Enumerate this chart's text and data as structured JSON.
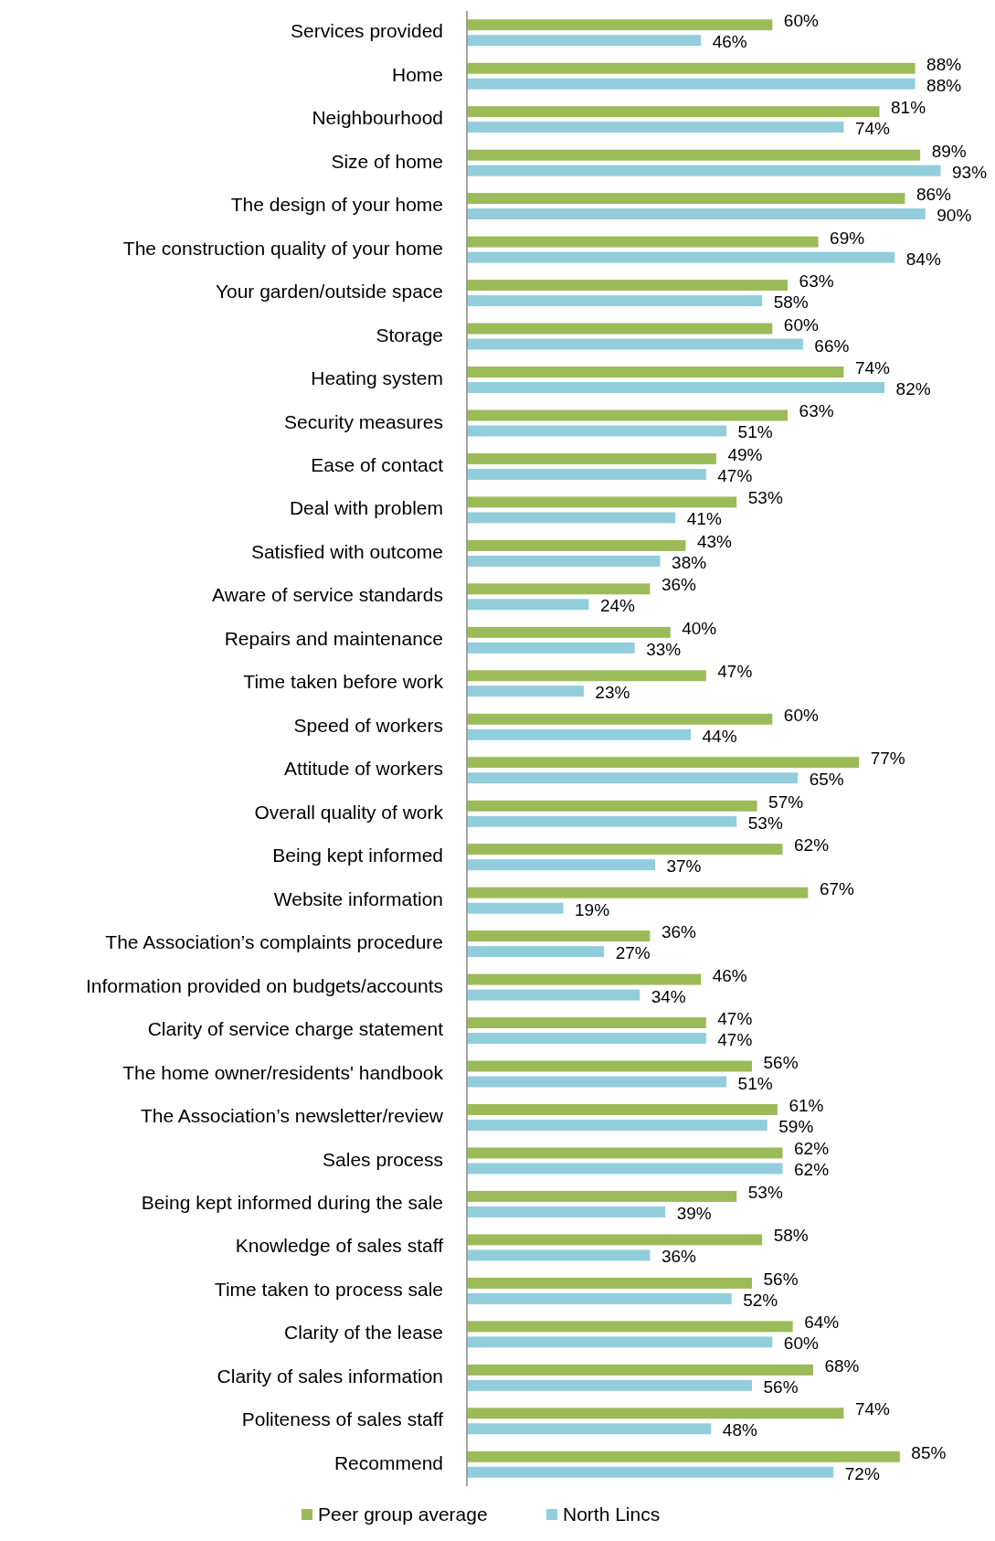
{
  "chart_data": {
    "type": "bar",
    "orientation": "horizontal",
    "tick_labels": "y",
    "legend": "bottom",
    "categories": [
      "Services provided",
      "Home",
      "Neighbourhood",
      "Size of home",
      "The design of your home",
      "The construction quality of your home",
      "Your garden/outside space",
      "Storage",
      "Heating system",
      "Security measures",
      "Ease of contact",
      "Deal with problem",
      "Satisfied with outcome",
      "Aware of service standards",
      "Repairs and maintenance",
      "Time taken before work",
      "Speed of workers",
      "Attitude of workers",
      "Overall quality of work",
      "Being kept informed",
      "Website information",
      "The Association’s complaints procedure",
      "Information provided on budgets/accounts",
      "Clarity of service charge statement",
      "The home owner/residents' handbook",
      "The Association’s newsletter/review",
      "Sales process",
      "Being kept informed during the sale",
      "Knowledge of sales staff",
      "Time taken to process sale",
      "Clarity of the lease",
      "Clarity of sales information",
      "Politeness of sales staff",
      "Recommend"
    ],
    "series": [
      {
        "name": "Peer group average",
        "color": "#9bbb59",
        "values": [
          60,
          88,
          81,
          89,
          86,
          69,
          63,
          60,
          74,
          63,
          49,
          53,
          43,
          36,
          40,
          47,
          60,
          77,
          57,
          62,
          67,
          36,
          46,
          47,
          56,
          61,
          62,
          53,
          58,
          56,
          64,
          68,
          74,
          85
        ],
        "value_labels": [
          "60%",
          "88%",
          "81%",
          "89%",
          "86%",
          "69%",
          "63%",
          "60%",
          "74%",
          "63%",
          "49%",
          "53%",
          "43%",
          "36%",
          "40%",
          "47%",
          "60%",
          "77%",
          "57%",
          "62%",
          "67%",
          "36%",
          "46%",
          "47%",
          "56%",
          "61%",
          "62%",
          "53%",
          "58%",
          "56%",
          "64%",
          "68%",
          "74%",
          "85%"
        ]
      },
      {
        "name": "North Lincs",
        "color": "#92cddc",
        "values": [
          46,
          88,
          74,
          93,
          90,
          84,
          58,
          66,
          82,
          51,
          47,
          41,
          38,
          24,
          33,
          23,
          44,
          65,
          53,
          37,
          19,
          27,
          34,
          47,
          51,
          59,
          62,
          39,
          36,
          52,
          60,
          56,
          48,
          72
        ],
        "value_labels": [
          "46%",
          "88%",
          "74%",
          "93%",
          "90%",
          "84%",
          "58%",
          "66%",
          "82%",
          "51%",
          "47%",
          "41%",
          "38%",
          "24%",
          "33%",
          "23%",
          "44%",
          "65%",
          "53%",
          "37%",
          "19%",
          "27%",
          "34%",
          "47%",
          "51%",
          "59%",
          "62%",
          "39%",
          "36%",
          "52%",
          "60%",
          "56%",
          "48%",
          "72%"
        ]
      }
    ]
  }
}
